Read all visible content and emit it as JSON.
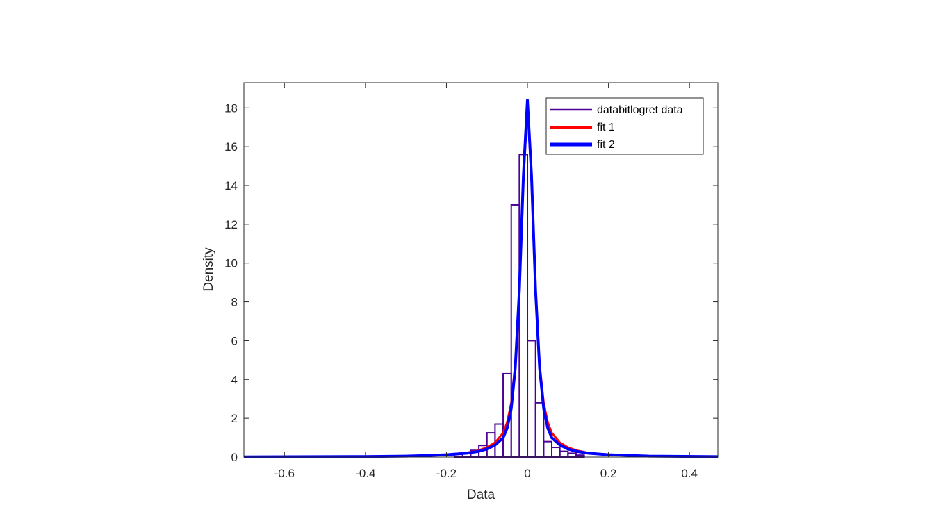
{
  "chart_data": {
    "type": "histogram",
    "xlabel": "Data",
    "ylabel": "Density",
    "xlim": [
      -0.7,
      0.47
    ],
    "ylim": [
      0,
      19.3
    ],
    "xticks": [
      -0.6,
      -0.4,
      -0.2,
      0,
      0.2,
      0.4
    ],
    "xtick_labels": [
      "-0.6",
      "-0.4",
      "-0.2",
      "0",
      "0.2",
      "0.4"
    ],
    "yticks": [
      0,
      2,
      4,
      6,
      8,
      10,
      12,
      14,
      16,
      18
    ],
    "ytick_labels": [
      "0",
      "2",
      "4",
      "6",
      "8",
      "10",
      "12",
      "14",
      "16",
      "18"
    ],
    "grid": false,
    "legend_position": "top-right",
    "histogram": {
      "name": "databitlogret data",
      "color": "#4B0096",
      "bin_width": 0.02,
      "bin_edges_start": -0.18,
      "values": [
        0.15,
        0.2,
        0.35,
        0.6,
        1.25,
        1.7,
        4.3,
        13.0,
        15.6,
        6.0,
        2.8,
        0.8,
        0.5,
        0.3,
        0.2,
        0.1
      ]
    },
    "series": [
      {
        "name": "fit 1",
        "color": "#FF0000",
        "x": [
          -0.7,
          -0.5,
          -0.4,
          -0.3,
          -0.25,
          -0.2,
          -0.15,
          -0.12,
          -0.1,
          -0.08,
          -0.06,
          -0.05,
          -0.04,
          -0.03,
          -0.02,
          -0.01,
          0,
          0.01,
          0.02,
          0.03,
          0.04,
          0.05,
          0.06,
          0.08,
          0.1,
          0.12,
          0.15,
          0.2,
          0.3,
          0.47
        ],
        "y": [
          0.01,
          0.02,
          0.03,
          0.05,
          0.08,
          0.12,
          0.22,
          0.35,
          0.5,
          0.75,
          1.25,
          1.8,
          2.8,
          4.8,
          8.5,
          14.2,
          18.2,
          14.2,
          8.5,
          4.8,
          2.8,
          1.8,
          1.25,
          0.75,
          0.5,
          0.35,
          0.22,
          0.12,
          0.05,
          0.02
        ]
      },
      {
        "name": "fit 2",
        "color": "#0000FF",
        "x": [
          -0.7,
          -0.5,
          -0.4,
          -0.3,
          -0.25,
          -0.2,
          -0.15,
          -0.12,
          -0.1,
          -0.08,
          -0.06,
          -0.05,
          -0.04,
          -0.03,
          -0.02,
          -0.01,
          0,
          0.01,
          0.02,
          0.03,
          0.04,
          0.05,
          0.06,
          0.08,
          0.1,
          0.12,
          0.15,
          0.2,
          0.3,
          0.47
        ],
        "y": [
          0.01,
          0.02,
          0.03,
          0.05,
          0.08,
          0.12,
          0.2,
          0.3,
          0.42,
          0.62,
          1.0,
          1.5,
          2.5,
          4.6,
          8.6,
          14.5,
          18.4,
          14.5,
          8.6,
          4.6,
          2.5,
          1.5,
          1.0,
          0.62,
          0.42,
          0.3,
          0.2,
          0.12,
          0.05,
          0.02
        ]
      }
    ]
  }
}
